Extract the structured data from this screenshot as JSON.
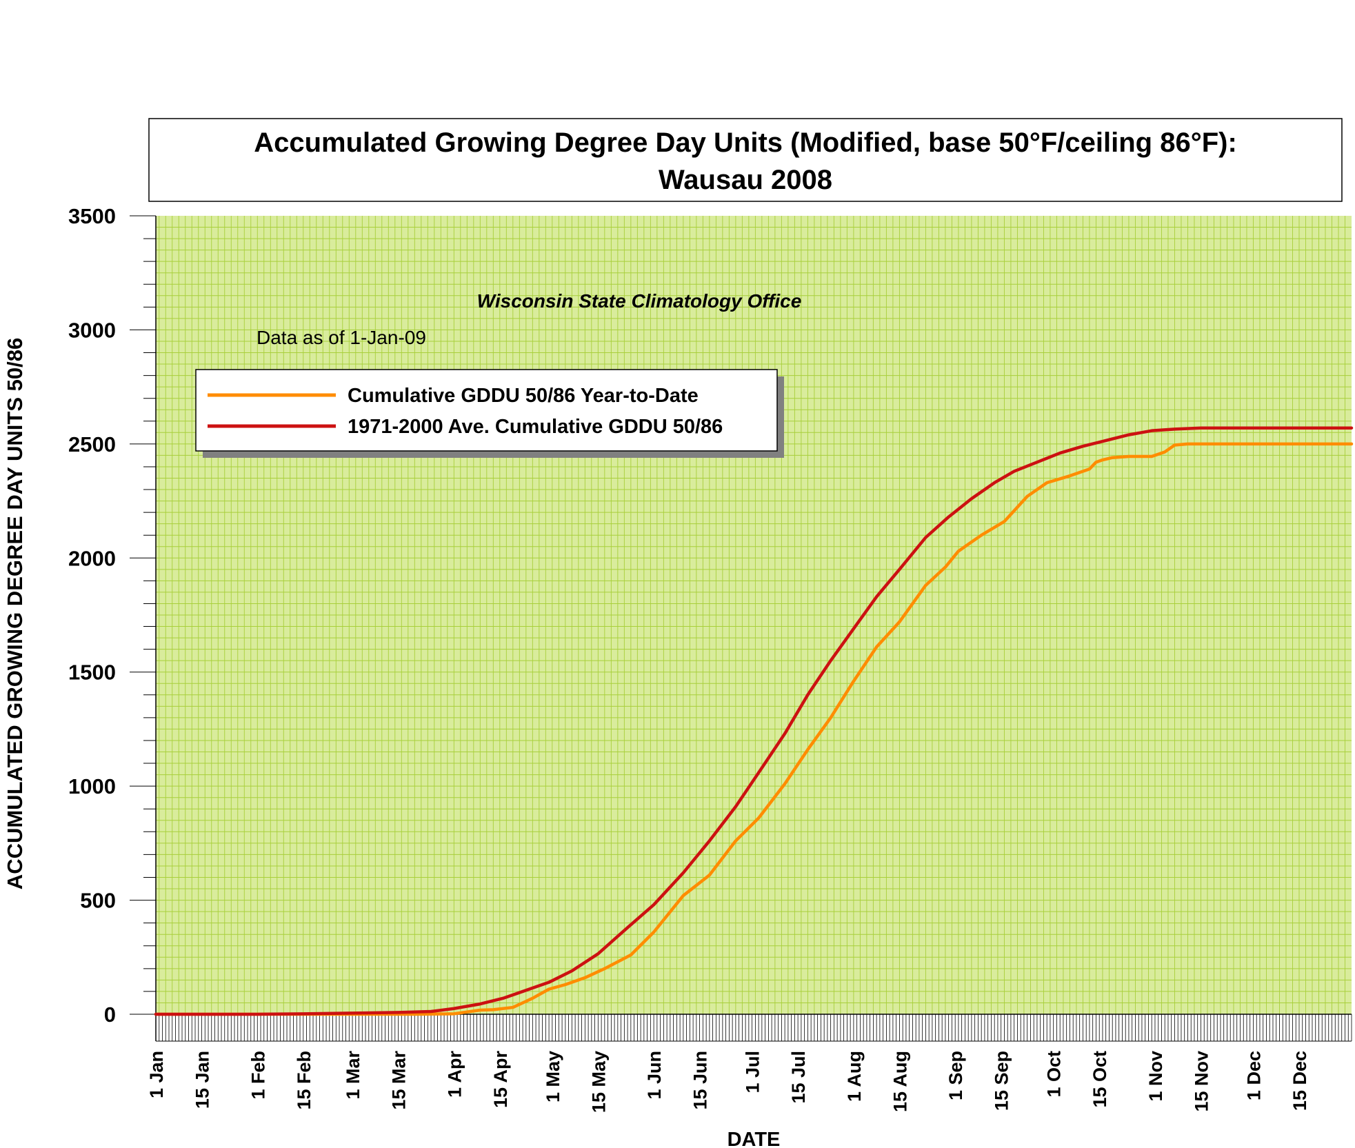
{
  "chart_data": {
    "type": "line",
    "title_line1": "Accumulated Growing Degree Day Units (Modified, base 50°F/ceiling 86°F):",
    "title_line2": "Wausau 2008",
    "subtitle": "Wisconsin State Climatology Office",
    "data_note": "Data as of 1-Jan-09",
    "xlabel": "DATE",
    "ylabel": "ACCUMULATED GROWING DEGREE DAY UNITS 50/86",
    "ylim": [
      0,
      3500
    ],
    "y_ticks": [
      0,
      500,
      1000,
      1500,
      2000,
      2500,
      3000,
      3500
    ],
    "x_unit": "day of year",
    "xlim": [
      1,
      366
    ],
    "x_tick_labels": [
      {
        "label": "1 Jan",
        "day": 1
      },
      {
        "label": "15 Jan",
        "day": 15
      },
      {
        "label": "1 Feb",
        "day": 32
      },
      {
        "label": "15 Feb",
        "day": 46
      },
      {
        "label": "1 Mar",
        "day": 61
      },
      {
        "label": "15 Mar",
        "day": 75
      },
      {
        "label": "1 Apr",
        "day": 92
      },
      {
        "label": "15 Apr",
        "day": 106
      },
      {
        "label": "1 May",
        "day": 122
      },
      {
        "label": "15 May",
        "day": 136
      },
      {
        "label": "1 Jun",
        "day": 153
      },
      {
        "label": "15 Jun",
        "day": 167
      },
      {
        "label": "1 Jul",
        "day": 183
      },
      {
        "label": "15 Jul",
        "day": 197
      },
      {
        "label": "1 Aug",
        "day": 214
      },
      {
        "label": "15 Aug",
        "day": 228
      },
      {
        "label": "1 Sep",
        "day": 245
      },
      {
        "label": "15 Sep",
        "day": 259
      },
      {
        "label": "1 Oct",
        "day": 275
      },
      {
        "label": "15 Oct",
        "day": 289
      },
      {
        "label": "1 Nov",
        "day": 306
      },
      {
        "label": "15 Nov",
        "day": 320
      },
      {
        "label": "1 Dec",
        "day": 336
      },
      {
        "label": "15 Dec",
        "day": 350
      }
    ],
    "grid": true,
    "plot_background": "#d9ec9c",
    "grid_color": "#a8cf3a",
    "legend_position": "upper-left",
    "series": [
      {
        "name": "Cumulative GDDU 50/86 Year-to-Date",
        "color": "#ff8c00",
        "x": [
          1,
          32,
          61,
          80,
          92,
          96,
          100,
          104,
          110,
          116,
          121,
          126,
          132,
          138,
          146,
          153,
          162,
          170,
          178,
          185,
          193,
          200,
          207,
          214,
          221,
          228,
          236,
          242,
          246,
          253,
          260,
          267,
          273,
          280,
          286,
          288,
          290,
          293,
          298,
          305,
          309,
          312,
          316,
          330,
          366
        ],
        "y": [
          0,
          0,
          0,
          0,
          2,
          10,
          18,
          20,
          30,
          70,
          110,
          130,
          160,
          200,
          260,
          360,
          520,
          610,
          760,
          860,
          1010,
          1160,
          1300,
          1460,
          1610,
          1720,
          1880,
          1960,
          2030,
          2100,
          2160,
          2270,
          2330,
          2360,
          2390,
          2420,
          2430,
          2440,
          2445,
          2445,
          2465,
          2495,
          2500,
          2500,
          2500
        ]
      },
      {
        "name": "1971-2000 Ave. Cumulative GDDU 50/86",
        "color": "#cc1111",
        "x": [
          1,
          32,
          46,
          61,
          75,
          85,
          92,
          100,
          107,
          114,
          121,
          128,
          136,
          145,
          153,
          162,
          170,
          178,
          186,
          193,
          200,
          207,
          214,
          221,
          228,
          236,
          243,
          250,
          257,
          263,
          270,
          277,
          284,
          291,
          298,
          305,
          312,
          320,
          366
        ],
        "y": [
          0,
          0,
          2,
          5,
          8,
          12,
          25,
          45,
          70,
          105,
          140,
          190,
          265,
          380,
          480,
          620,
          760,
          910,
          1080,
          1230,
          1400,
          1550,
          1690,
          1830,
          1950,
          2090,
          2180,
          2260,
          2330,
          2380,
          2420,
          2460,
          2490,
          2515,
          2540,
          2558,
          2565,
          2570,
          2570
        ]
      }
    ]
  }
}
